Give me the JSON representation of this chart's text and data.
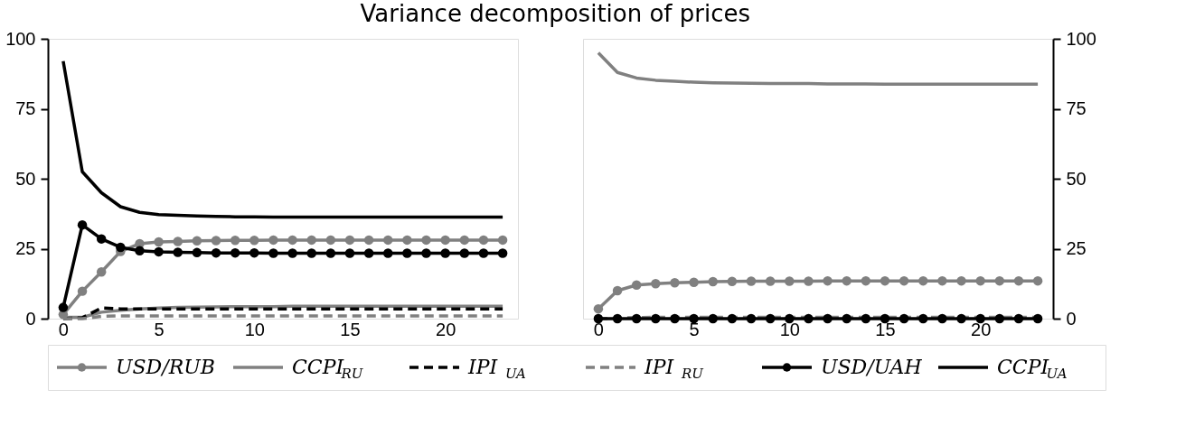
{
  "chart_data": [
    {
      "type": "line",
      "title": "Variance decomposition of prices",
      "x": [
        0,
        1,
        2,
        3,
        4,
        5,
        6,
        7,
        8,
        9,
        10,
        11,
        12,
        13,
        14,
        15,
        16,
        17,
        18,
        19,
        20,
        21,
        22,
        23
      ],
      "xlim": [
        -0.8,
        23.8
      ],
      "xticks": [
        0,
        5,
        10,
        15,
        20
      ],
      "ylim": [
        0,
        100
      ],
      "yticks": [
        0,
        25,
        50,
        75,
        100
      ],
      "legend": "bottom",
      "grid": false,
      "series": [
        {
          "name": "USD/RUB",
          "color": "#808080",
          "marker": "circle",
          "line_style": "solid",
          "values": [
            1.5,
            9.8,
            16.7,
            24,
            26.8,
            27.4,
            27.6,
            27.8,
            27.9,
            28,
            28,
            28.1,
            28.1,
            28.1,
            28.1,
            28.1,
            28.1,
            28.1,
            28.1,
            28.1,
            28.1,
            28.1,
            28.1,
            28.1
          ]
        },
        {
          "name": "CCPI$_{RU}$",
          "color": "#808080",
          "marker": "none",
          "line_style": "solid",
          "values": [
            0.5,
            0.5,
            2.3,
            3,
            3.5,
            3.8,
            4,
            4.1,
            4.2,
            4.3,
            4.3,
            4.3,
            4.4,
            4.4,
            4.4,
            4.4,
            4.4,
            4.4,
            4.4,
            4.4,
            4.4,
            4.4,
            4.4,
            4.4
          ]
        },
        {
          "name": "IPI$_{UA}$",
          "color": "#000000",
          "marker": "none",
          "line_style": "dashed",
          "values": [
            0,
            0.3,
            3.8,
            3.5,
            3.5,
            3.5,
            3.5,
            3.5,
            3.5,
            3.5,
            3.5,
            3.5,
            3.5,
            3.5,
            3.5,
            3.5,
            3.5,
            3.5,
            3.5,
            3.5,
            3.5,
            3.5,
            3.5,
            3.5
          ]
        },
        {
          "name": "IPI$_{RU}$",
          "color": "#808080",
          "marker": "none",
          "line_style": "dashed",
          "values": [
            0,
            0,
            0.8,
            1,
            1,
            1,
            1,
            1,
            1,
            1,
            1,
            1,
            1,
            1,
            1,
            1,
            1,
            1,
            1,
            1,
            1,
            1,
            1,
            1
          ]
        },
        {
          "name": "USD/UAH",
          "color": "#000000",
          "marker": "circle",
          "line_style": "solid",
          "values": [
            4,
            33.5,
            28.5,
            25.5,
            24.3,
            23.9,
            23.7,
            23.6,
            23.5,
            23.5,
            23.5,
            23.4,
            23.4,
            23.4,
            23.4,
            23.4,
            23.4,
            23.4,
            23.4,
            23.4,
            23.4,
            23.4,
            23.4,
            23.4
          ]
        },
        {
          "name": "CCPI$_{UA}$",
          "color": "#000000",
          "marker": "none",
          "line_style": "solid",
          "values": [
            92,
            52.5,
            45,
            40,
            38,
            37.2,
            36.9,
            36.7,
            36.5,
            36.4,
            36.4,
            36.3,
            36.3,
            36.3,
            36.3,
            36.3,
            36.3,
            36.3,
            36.3,
            36.3,
            36.3,
            36.3,
            36.3,
            36.3
          ]
        }
      ]
    },
    {
      "type": "line",
      "x": [
        0,
        1,
        2,
        3,
        4,
        5,
        6,
        7,
        8,
        9,
        10,
        11,
        12,
        13,
        14,
        15,
        16,
        17,
        18,
        19,
        20,
        21,
        22,
        23
      ],
      "xlim": [
        -0.8,
        23.8
      ],
      "xticks": [
        0,
        5,
        10,
        15,
        20
      ],
      "ylim": [
        0,
        100
      ],
      "yticks": [
        0,
        25,
        50,
        75,
        100
      ],
      "legend": "bottom",
      "grid": false,
      "series": [
        {
          "name": "USD/RUB",
          "color": "#808080",
          "marker": "circle",
          "line_style": "solid",
          "values": [
            3.5,
            10,
            12,
            12.5,
            12.8,
            13,
            13.2,
            13.3,
            13.4,
            13.4,
            13.4,
            13.4,
            13.5,
            13.5,
            13.5,
            13.5,
            13.5,
            13.5,
            13.5,
            13.5,
            13.5,
            13.5,
            13.5,
            13.5
          ]
        },
        {
          "name": "CCPI$_{RU}$",
          "color": "#808080",
          "marker": "none",
          "line_style": "solid",
          "values": [
            95,
            88,
            86,
            85.2,
            84.8,
            84.5,
            84.3,
            84.2,
            84.1,
            84,
            84,
            84,
            83.9,
            83.9,
            83.9,
            83.8,
            83.8,
            83.8,
            83.8,
            83.8,
            83.8,
            83.8,
            83.8,
            83.8
          ]
        },
        {
          "name": "IPI$_{UA}$",
          "color": "#000000",
          "marker": "none",
          "line_style": "dashed",
          "values": [
            null,
            null,
            null,
            null,
            null,
            null,
            null,
            null,
            null,
            null,
            null,
            null,
            null,
            null,
            null,
            null,
            null,
            null,
            null,
            null,
            null,
            null,
            null,
            null
          ]
        },
        {
          "name": "IPI$_{RU}$",
          "color": "#808080",
          "marker": "none",
          "line_style": "dashed",
          "values": [
            0,
            0.2,
            0.4,
            0.5,
            0.5,
            0.5,
            0.5,
            0.5,
            0.5,
            0.5,
            0.5,
            0.5,
            0.5,
            0.5,
            0.5,
            0.5,
            0.5,
            0.5,
            0.5,
            0.5,
            0.5,
            0.5,
            0.5,
            0.5
          ]
        },
        {
          "name": "USD/UAH",
          "color": "#000000",
          "marker": "circle",
          "line_style": "solid",
          "values": [
            0,
            0,
            0,
            0,
            0,
            0,
            0,
            0,
            0,
            0,
            0,
            0,
            0,
            0,
            0,
            0,
            0,
            0,
            0,
            0,
            0,
            0,
            0,
            0
          ]
        },
        {
          "name": "CCPI$_{UA}$",
          "color": "#000000",
          "marker": "none",
          "line_style": "solid",
          "values": [
            null,
            null,
            null,
            null,
            null,
            null,
            null,
            null,
            null,
            null,
            null,
            null,
            null,
            null,
            null,
            null,
            null,
            null,
            null,
            null,
            null,
            null,
            null,
            null
          ]
        }
      ]
    }
  ]
}
